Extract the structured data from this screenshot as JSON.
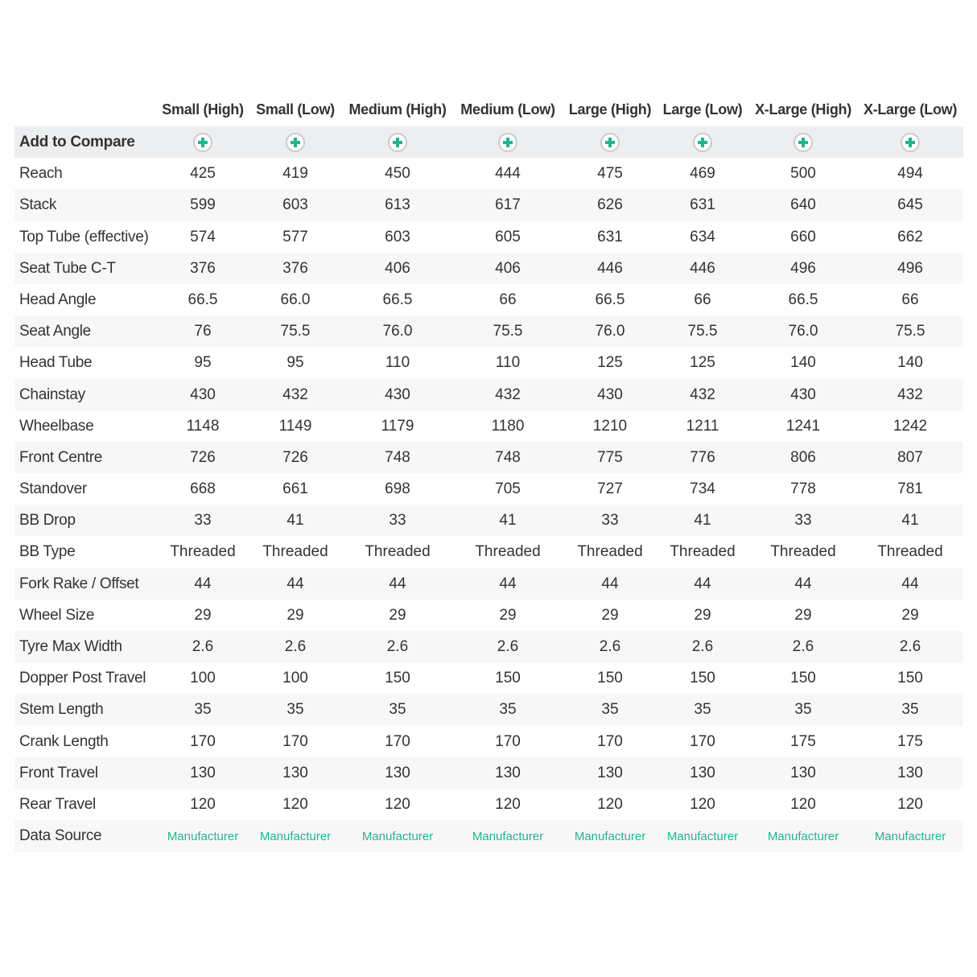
{
  "columns": [
    "Small (High)",
    "Small (Low)",
    "Medium (High)",
    "Medium (Low)",
    "Large (High)",
    "Large (Low)",
    "X-Large (High)",
    "X-Large (Low)"
  ],
  "compare_label": "Add to Compare",
  "compare_icon": "plus-circle-icon",
  "accent_color": "#1fb58f",
  "rows": [
    {
      "label": "Reach",
      "values": [
        "425",
        "419",
        "450",
        "444",
        "475",
        "469",
        "500",
        "494"
      ]
    },
    {
      "label": "Stack",
      "values": [
        "599",
        "603",
        "613",
        "617",
        "626",
        "631",
        "640",
        "645"
      ]
    },
    {
      "label": "Top Tube (effective)",
      "values": [
        "574",
        "577",
        "603",
        "605",
        "631",
        "634",
        "660",
        "662"
      ]
    },
    {
      "label": "Seat Tube C-T",
      "values": [
        "376",
        "376",
        "406",
        "406",
        "446",
        "446",
        "496",
        "496"
      ]
    },
    {
      "label": "Head Angle",
      "values": [
        "66.5",
        "66.0",
        "66.5",
        "66",
        "66.5",
        "66",
        "66.5",
        "66"
      ]
    },
    {
      "label": "Seat Angle",
      "values": [
        "76",
        "75.5",
        "76.0",
        "75.5",
        "76.0",
        "75.5",
        "76.0",
        "75.5"
      ]
    },
    {
      "label": "Head Tube",
      "values": [
        "95",
        "95",
        "110",
        "110",
        "125",
        "125",
        "140",
        "140"
      ]
    },
    {
      "label": "Chainstay",
      "values": [
        "430",
        "432",
        "430",
        "432",
        "430",
        "432",
        "430",
        "432"
      ]
    },
    {
      "label": "Wheelbase",
      "values": [
        "1148",
        "1149",
        "1179",
        "1180",
        "1210",
        "1211",
        "1241",
        "1242"
      ]
    },
    {
      "label": "Front Centre",
      "values": [
        "726",
        "726",
        "748",
        "748",
        "775",
        "776",
        "806",
        "807"
      ]
    },
    {
      "label": "Standover",
      "values": [
        "668",
        "661",
        "698",
        "705",
        "727",
        "734",
        "778",
        "781"
      ]
    },
    {
      "label": "BB Drop",
      "values": [
        "33",
        "41",
        "33",
        "41",
        "33",
        "41",
        "33",
        "41"
      ]
    },
    {
      "label": "BB Type",
      "values": [
        "Threaded",
        "Threaded",
        "Threaded",
        "Threaded",
        "Threaded",
        "Threaded",
        "Threaded",
        "Threaded"
      ]
    },
    {
      "label": "Fork Rake / Offset",
      "values": [
        "44",
        "44",
        "44",
        "44",
        "44",
        "44",
        "44",
        "44"
      ]
    },
    {
      "label": "Wheel Size",
      "values": [
        "29",
        "29",
        "29",
        "29",
        "29",
        "29",
        "29",
        "29"
      ]
    },
    {
      "label": "Tyre Max Width",
      "values": [
        "2.6",
        "2.6",
        "2.6",
        "2.6",
        "2.6",
        "2.6",
        "2.6",
        "2.6"
      ]
    },
    {
      "label": "Dopper Post Travel",
      "values": [
        "100",
        "100",
        "150",
        "150",
        "150",
        "150",
        "150",
        "150"
      ]
    },
    {
      "label": "Stem Length",
      "values": [
        "35",
        "35",
        "35",
        "35",
        "35",
        "35",
        "35",
        "35"
      ]
    },
    {
      "label": "Crank Length",
      "values": [
        "170",
        "170",
        "170",
        "170",
        "170",
        "170",
        "175",
        "175"
      ]
    },
    {
      "label": "Front Travel",
      "values": [
        "130",
        "130",
        "130",
        "130",
        "130",
        "130",
        "130",
        "130"
      ]
    },
    {
      "label": "Rear Travel",
      "values": [
        "120",
        "120",
        "120",
        "120",
        "120",
        "120",
        "120",
        "120"
      ]
    }
  ],
  "data_source": {
    "label": "Data Source",
    "values": [
      "Manufacturer",
      "Manufacturer",
      "Manufacturer",
      "Manufacturer",
      "Manufacturer",
      "Manufacturer",
      "Manufacturer",
      "Manufacturer"
    ]
  }
}
